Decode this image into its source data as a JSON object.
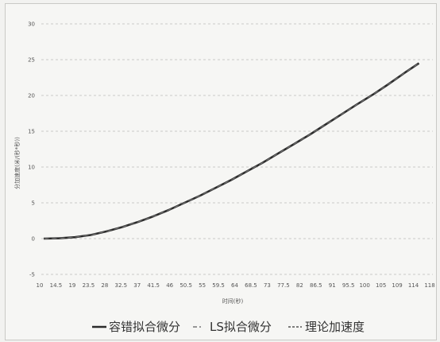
{
  "chart_data": {
    "type": "line",
    "xlabel": "时间(秒)",
    "ylabel": "分加速度(米/(秒*秒))",
    "ylim": [
      -5,
      30
    ],
    "yticks": [
      -5,
      0,
      5,
      10,
      15,
      20,
      25,
      30
    ],
    "grid": "dashed horizontal",
    "legend_position": "bottom",
    "x_tick_labels": [
      "10",
      "14.5",
      "19",
      "23.5",
      "28",
      "32.5",
      "37",
      "41.5",
      "46",
      "50.5",
      "55",
      "59.5",
      "64",
      "68.5",
      "73",
      "77.5",
      "82",
      "86.5",
      "91",
      "95.5",
      "100",
      "105",
      "109",
      "114",
      "118"
    ],
    "series": [
      {
        "name": "容错拟合微分",
        "style": "solid",
        "color": "#2b2b2b",
        "x": [
          10,
          14.5,
          19,
          23.5,
          28,
          32.5,
          37,
          41.5,
          46,
          50.5,
          55,
          59.5,
          64,
          68.5,
          73,
          77.5,
          82,
          86.5,
          91,
          95.5,
          100,
          105,
          109,
          114,
          118
        ],
        "y": [
          0,
          0.05,
          0.2,
          0.5,
          1.0,
          1.6,
          2.3,
          3.1,
          4.0,
          5.0,
          6.0,
          7.1,
          8.2,
          9.4,
          10.6,
          11.9,
          13.2,
          14.5,
          15.9,
          17.3,
          18.7,
          20.2,
          21.5,
          23.2,
          24.5
        ]
      },
      {
        "name": "LS拟合微分",
        "style": "dash",
        "color": "#777777",
        "x": [
          10,
          14.5,
          19,
          23.5,
          28,
          32.5,
          37,
          41.5,
          46,
          50.5,
          55,
          59.5,
          64,
          68.5,
          73,
          77.5,
          82,
          86.5,
          91,
          95.5,
          100,
          105,
          109,
          114,
          118
        ],
        "y": [
          0,
          0.05,
          0.2,
          0.5,
          1.0,
          1.6,
          2.3,
          3.1,
          4.0,
          5.0,
          6.0,
          7.1,
          8.2,
          9.4,
          10.6,
          11.9,
          13.2,
          14.5,
          15.9,
          17.3,
          18.7,
          20.2,
          21.5,
          23.2,
          24.5
        ]
      },
      {
        "name": "理论加速度",
        "style": "dotted",
        "color": "#555555",
        "x": [
          10,
          14.5,
          19,
          23.5,
          28,
          32.5,
          37,
          41.5,
          46,
          50.5,
          55,
          59.5,
          64,
          68.5,
          73,
          77.5,
          82,
          86.5,
          91,
          95.5,
          100,
          105,
          109,
          114,
          118
        ],
        "y": [
          0,
          0.05,
          0.2,
          0.5,
          1.0,
          1.6,
          2.3,
          3.1,
          4.0,
          5.0,
          6.0,
          7.1,
          8.2,
          9.4,
          10.6,
          11.9,
          13.2,
          14.5,
          15.9,
          17.3,
          18.7,
          20.2,
          21.5,
          23.2,
          24.5
        ]
      }
    ],
    "legend": {
      "item1": "容错拟合微分",
      "item2": "LS拟合微分",
      "item3": "理论加速度"
    }
  }
}
